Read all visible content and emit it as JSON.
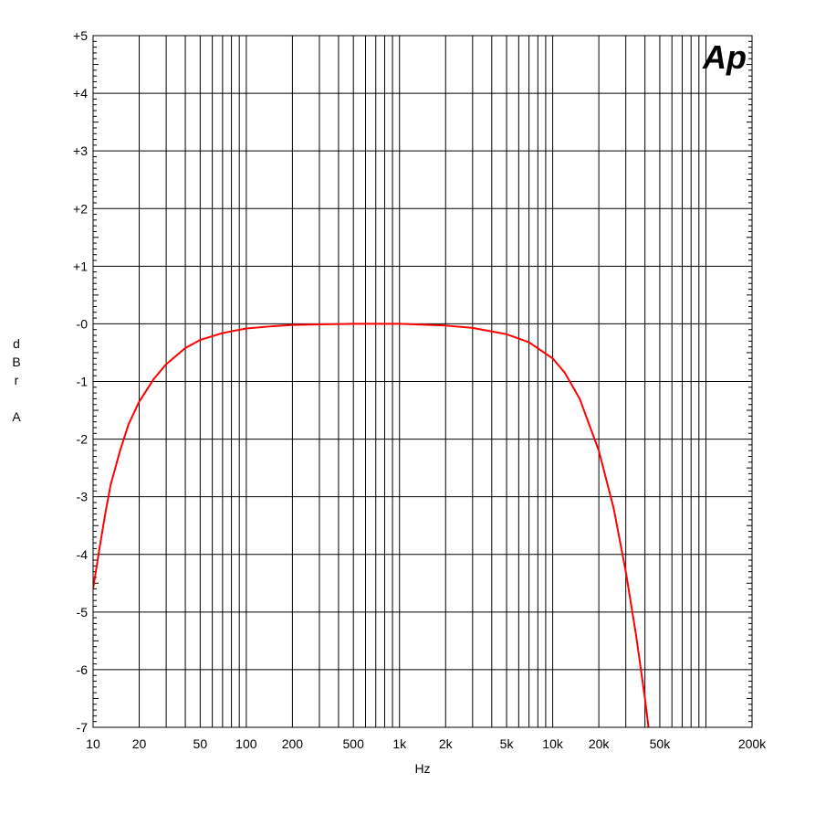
{
  "chart_data": {
    "type": "line",
    "title": "",
    "xlabel": "Hz",
    "ylabel": [
      "d",
      "B",
      "r",
      "",
      "A"
    ],
    "x_scale": "log",
    "xlim": [
      10,
      200000
    ],
    "ylim": [
      -7,
      5
    ],
    "grid": true,
    "logo": "Ap",
    "colors": {
      "series": "#ff0000",
      "grid": "#000000",
      "logo": "#1a1aff"
    },
    "x_tick_labels": [
      {
        "value": 10,
        "label": "10"
      },
      {
        "value": 20,
        "label": "20"
      },
      {
        "value": 50,
        "label": "50"
      },
      {
        "value": 100,
        "label": "100"
      },
      {
        "value": 200,
        "label": "200"
      },
      {
        "value": 500,
        "label": "500"
      },
      {
        "value": 1000,
        "label": "1k"
      },
      {
        "value": 2000,
        "label": "2k"
      },
      {
        "value": 5000,
        "label": "5k"
      },
      {
        "value": 10000,
        "label": "10k"
      },
      {
        "value": 20000,
        "label": "20k"
      },
      {
        "value": 50000,
        "label": "50k"
      },
      {
        "value": 200000,
        "label": "200k"
      }
    ],
    "y_tick_labels": [
      {
        "value": 5,
        "label": "+5"
      },
      {
        "value": 4,
        "label": "+4"
      },
      {
        "value": 3,
        "label": "+3"
      },
      {
        "value": 2,
        "label": "+2"
      },
      {
        "value": 1,
        "label": "+1"
      },
      {
        "value": 0,
        "label": "-0"
      },
      {
        "value": -1,
        "label": "-1"
      },
      {
        "value": -2,
        "label": "-2"
      },
      {
        "value": -3,
        "label": "-3"
      },
      {
        "value": -4,
        "label": "-4"
      },
      {
        "value": -5,
        "label": "-5"
      },
      {
        "value": -6,
        "label": "-6"
      },
      {
        "value": -7,
        "label": "-7"
      }
    ],
    "series": [
      {
        "color": "#ff0000",
        "x": [
          10,
          11,
          12,
          13,
          15,
          17,
          20,
          25,
          30,
          40,
          50,
          70,
          100,
          150,
          200,
          300,
          500,
          1000,
          2000,
          3000,
          5000,
          7000,
          10000,
          12000,
          15000,
          20000,
          25000,
          30000,
          35000,
          40000,
          45000
        ],
        "y": [
          -4.6,
          -3.9,
          -3.3,
          -2.8,
          -2.2,
          -1.75,
          -1.35,
          -0.95,
          -0.7,
          -0.42,
          -0.28,
          -0.16,
          -0.08,
          -0.04,
          -0.02,
          -0.01,
          0.0,
          0.0,
          -0.03,
          -0.07,
          -0.18,
          -0.32,
          -0.6,
          -0.85,
          -1.3,
          -2.2,
          -3.2,
          -4.3,
          -5.4,
          -6.5,
          -7.6
        ]
      }
    ]
  }
}
